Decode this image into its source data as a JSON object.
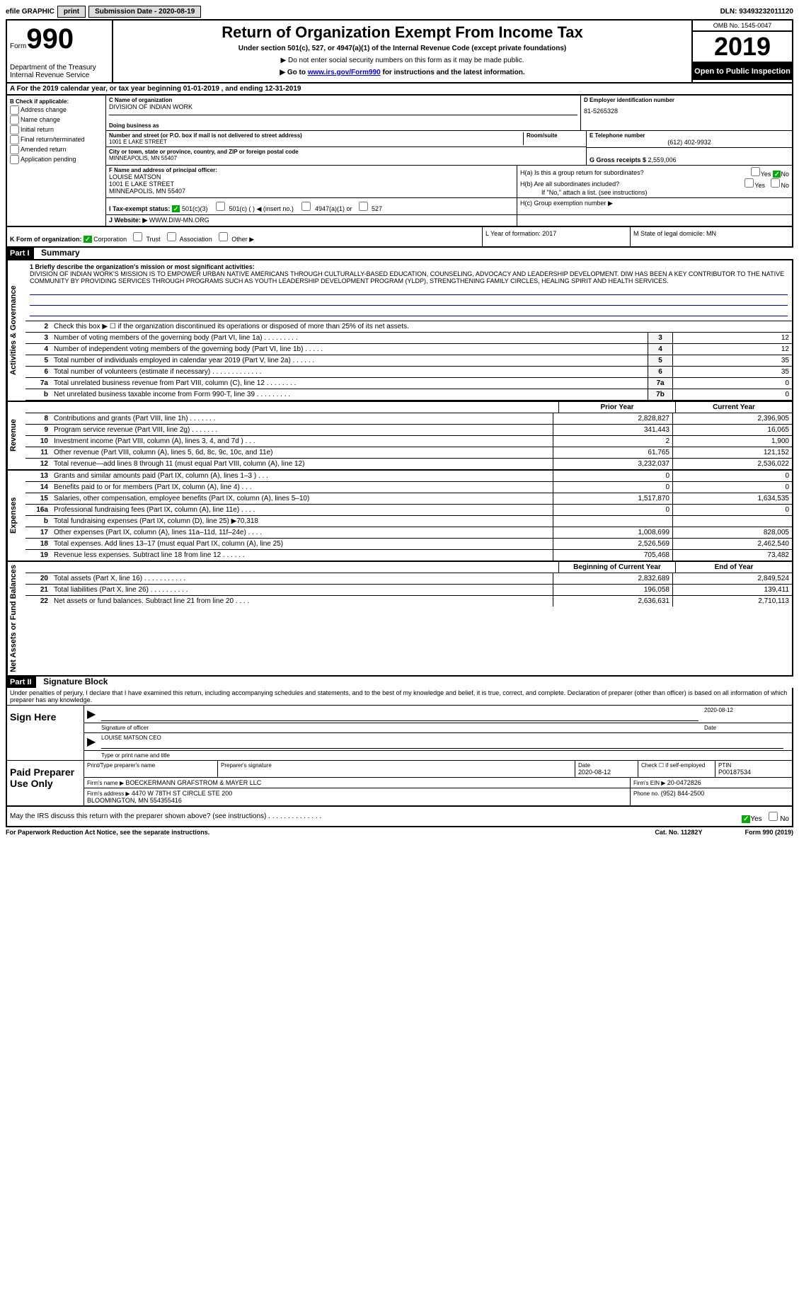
{
  "topbar": {
    "efile": "efile GRAPHIC",
    "print": "print",
    "subdate_label": "Submission Date - ",
    "subdate": "2020-08-19",
    "dln_label": "DLN: ",
    "dln": "93493232011120"
  },
  "header": {
    "form_word": "Form",
    "form_num": "990",
    "dept": "Department of the Treasury\nInternal Revenue Service",
    "title": "Return of Organization Exempt From Income Tax",
    "subtitle": "Under section 501(c), 527, or 4947(a)(1) of the Internal Revenue Code (except private foundations)",
    "warn1": "▶ Do not enter social security numbers on this form as it may be made public.",
    "warn2_pre": "▶ Go to ",
    "warn2_link": "www.irs.gov/Form990",
    "warn2_post": " for instructions and the latest information.",
    "omb": "OMB No. 1545-0047",
    "year": "2019",
    "open": "Open to Public Inspection"
  },
  "lineA": "A For the 2019 calendar year, or tax year beginning 01-01-2019   , and ending 12-31-2019",
  "boxB": {
    "title": "B Check if applicable:",
    "items": [
      "Address change",
      "Name change",
      "Initial return",
      "Final return/terminated",
      "Amended return",
      "Application pending"
    ]
  },
  "boxC": {
    "label": "C Name of organization",
    "name": "DIVISION OF INDIAN WORK",
    "dba_label": "Doing business as",
    "addr_label": "Number and street (or P.O. box if mail is not delivered to street address)",
    "room_label": "Room/suite",
    "addr": "1001 E LAKE STREET",
    "city_label": "City or town, state or province, country, and ZIP or foreign postal code",
    "city": "MINNEAPOLIS, MN  55407"
  },
  "boxD": {
    "label": "D Employer identification number",
    "val": "81-5265328"
  },
  "boxE": {
    "label": "E Telephone number",
    "val": "(612) 402-9932"
  },
  "boxG": {
    "label": "G Gross receipts $ ",
    "val": "2,559,006"
  },
  "boxF": {
    "label": "F Name and address of principal officer:",
    "name": "LOUISE MATSON",
    "addr1": "1001 E LAKE STREET",
    "addr2": "MINNEAPOLIS, MN  55407"
  },
  "boxH": {
    "a": "H(a)  Is this a group return for subordinates?",
    "b": "H(b)  Are all subordinates included?",
    "note": "If \"No,\" attach a list. (see instructions)",
    "c": "H(c)  Group exemption number ▶"
  },
  "boxI": {
    "label": "I   Tax-exempt status:",
    "o1": "501(c)(3)",
    "o2": "501(c) (   ) ◀ (insert no.)",
    "o3": "4947(a)(1) or",
    "o4": "527"
  },
  "boxJ": {
    "label": "J   Website: ▶ ",
    "val": "WWW.DIW-MN.ORG"
  },
  "boxK": {
    "label": "K Form of organization:",
    "opts": [
      "Corporation",
      "Trust",
      "Association",
      "Other ▶"
    ],
    "L": "L Year of formation: 2017",
    "M": "M State of legal domicile: MN"
  },
  "part1": {
    "bar": "Part I",
    "title": "Summary"
  },
  "mission": {
    "label": "1   Briefly describe the organization's mission or most significant activities:",
    "text": "DIVISION OF INDIAN WORK'S MISSION IS TO EMPOWER URBAN NATIVE AMERICANS THROUGH CULTURALLY-BASED EDUCATION, COUNSELING, ADVOCACY AND LEADERSHIP DEVELOPMENT. DIW HAS BEEN A KEY CONTRIBUTOR TO THE NATIVE COMMUNITY BY PROVIDING SERVICES THROUGH PROGRAMS SUCH AS YOUTH LEADERSHIP DEVELOPMENT PROGRAM (YLDP), STRENGTHENING FAMILY CIRCLES, HEALING SPIRIT AND HEALTH SERVICES."
  },
  "govrows": [
    {
      "n": "2",
      "d": "Check this box ▶ ☐ if the organization discontinued its operations or disposed of more than 25% of its net assets.",
      "k": "",
      "v": ""
    },
    {
      "n": "3",
      "d": "Number of voting members of the governing body (Part VI, line 1a)  .   .   .   .   .   .   .   .   .",
      "k": "3",
      "v": "12"
    },
    {
      "n": "4",
      "d": "Number of independent voting members of the governing body (Part VI, line 1b)   .   .   .   .   .",
      "k": "4",
      "v": "12"
    },
    {
      "n": "5",
      "d": "Total number of individuals employed in calendar year 2019 (Part V, line 2a)   .   .   .   .   .   .",
      "k": "5",
      "v": "35"
    },
    {
      "n": "6",
      "d": "Total number of volunteers (estimate if necessary)   .   .   .   .   .   .   .   .   .   .   .   .   .",
      "k": "6",
      "v": "35"
    },
    {
      "n": "7a",
      "d": "Total unrelated business revenue from Part VIII, column (C), line 12   .   .   .   .   .   .   .   .",
      "k": "7a",
      "v": "0"
    },
    {
      "n": "b",
      "d": "Net unrelated business taxable income from Form 990-T, line 39   .   .   .   .   .   .   .   .   .",
      "k": "7b",
      "v": "0"
    }
  ],
  "colhead": {
    "prior": "Prior Year",
    "current": "Current Year"
  },
  "revenue": [
    {
      "n": "8",
      "d": "Contributions and grants (Part VIII, line 1h)   .   .   .   .   .   .   .",
      "p": "2,828,827",
      "c": "2,396,905"
    },
    {
      "n": "9",
      "d": "Program service revenue (Part VIII, line 2g)   .   .   .   .   .   .   .",
      "p": "341,443",
      "c": "16,065"
    },
    {
      "n": "10",
      "d": "Investment income (Part VIII, column (A), lines 3, 4, and 7d )   .   .   .",
      "p": "2",
      "c": "1,900"
    },
    {
      "n": "11",
      "d": "Other revenue (Part VIII, column (A), lines 5, 6d, 8c, 9c, 10c, and 11e)",
      "p": "61,765",
      "c": "121,152"
    },
    {
      "n": "12",
      "d": "Total revenue—add lines 8 through 11 (must equal Part VIII, column (A), line 12)",
      "p": "3,232,037",
      "c": "2,536,022"
    }
  ],
  "expenses": [
    {
      "n": "13",
      "d": "Grants and similar amounts paid (Part IX, column (A), lines 1–3 )   .   .   .",
      "p": "0",
      "c": "0"
    },
    {
      "n": "14",
      "d": "Benefits paid to or for members (Part IX, column (A), line 4)   .   .   .",
      "p": "0",
      "c": "0"
    },
    {
      "n": "15",
      "d": "Salaries, other compensation, employee benefits (Part IX, column (A), lines 5–10)",
      "p": "1,517,870",
      "c": "1,634,535"
    },
    {
      "n": "16a",
      "d": "Professional fundraising fees (Part IX, column (A), line 11e)   .   .   .   .",
      "p": "0",
      "c": "0"
    },
    {
      "n": "b",
      "d": "Total fundraising expenses (Part IX, column (D), line 25) ▶70,318",
      "p": "",
      "c": ""
    },
    {
      "n": "17",
      "d": "Other expenses (Part IX, column (A), lines 11a–11d, 11f–24e)   .   .   .   .",
      "p": "1,008,699",
      "c": "828,005"
    },
    {
      "n": "18",
      "d": "Total expenses. Add lines 13–17 (must equal Part IX, column (A), line 25)",
      "p": "2,526,569",
      "c": "2,462,540"
    },
    {
      "n": "19",
      "d": "Revenue less expenses. Subtract line 18 from line 12   .   .   .   .   .   .",
      "p": "705,468",
      "c": "73,482"
    }
  ],
  "nethead": {
    "prior": "Beginning of Current Year",
    "current": "End of Year"
  },
  "netassets": [
    {
      "n": "20",
      "d": "Total assets (Part X, line 16)   .   .   .   .   .   .   .   .   .   .   .",
      "p": "2,832,689",
      "c": "2,849,524"
    },
    {
      "n": "21",
      "d": "Total liabilities (Part X, line 26)   .   .   .   .   .   .   .   .   .   .",
      "p": "196,058",
      "c": "139,411"
    },
    {
      "n": "22",
      "d": "Net assets or fund balances. Subtract line 21 from line 20   .   .   .   .",
      "p": "2,636,631",
      "c": "2,710,113"
    }
  ],
  "part2": {
    "bar": "Part II",
    "title": "Signature Block"
  },
  "sig": {
    "decl": "Under penalties of perjury, I declare that I have examined this return, including accompanying schedules and statements, and to the best of my knowledge and belief, it is true, correct, and complete. Declaration of preparer (other than officer) is based on all information of which preparer has any knowledge.",
    "signhere": "Sign Here",
    "sigoff": "Signature of officer",
    "date": "2020-08-12",
    "name": "LOUISE MATSON CEO",
    "typelab": "Type or print name and title",
    "paid": "Paid Preparer Use Only",
    "pt_name_lab": "Print/Type preparer's name",
    "pt_sig_lab": "Preparer's signature",
    "pt_date_lab": "Date",
    "pt_date": "2020-08-12",
    "pt_self": "Check ☐ if self-employed",
    "ptin_lab": "PTIN",
    "ptin": "P00187534",
    "firm_lab": "Firm's name   ▶ ",
    "firm": "BOECKERMANN GRAFSTROM & MAYER LLC",
    "ein_lab": "Firm's EIN ▶ ",
    "ein": "20-0472826",
    "faddr_lab": "Firm's address ▶ ",
    "faddr": "4470 W 78TH ST CIRCLE STE 200\nBLOOMINGTON, MN  554355416",
    "phone_lab": "Phone no. ",
    "phone": "(952) 844-2500"
  },
  "irsline": "May the IRS discuss this return with the preparer shown above? (see instructions)   .   .   .   .   .   .   .   .   .   .   .   .   .   .",
  "footer": {
    "left": "For Paperwork Reduction Act Notice, see the separate instructions.",
    "mid": "Cat. No. 11282Y",
    "right": "Form 990 (2019)"
  },
  "tabs": {
    "gov": "Activities & Governance",
    "rev": "Revenue",
    "exp": "Expenses",
    "net": "Net Assets or Fund Balances"
  }
}
